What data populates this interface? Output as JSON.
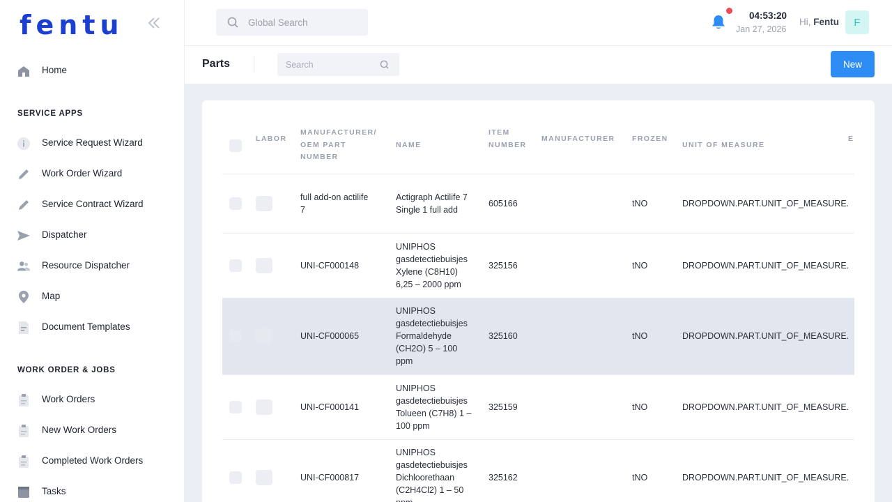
{
  "app": {
    "logo": "fentu"
  },
  "sidebar": {
    "home": {
      "label": "Home",
      "icon": "home-icon"
    },
    "service_apps_title": "SERVICE APPS",
    "service_apps": [
      {
        "label": "Service Request Wizard",
        "icon": "info-icon"
      },
      {
        "label": "Work Order Wizard",
        "icon": "pencil-icon"
      },
      {
        "label": "Service Contract Wizard",
        "icon": "pencil-icon"
      },
      {
        "label": "Dispatcher",
        "icon": "send-icon"
      },
      {
        "label": "Resource Dispatcher",
        "icon": "users-icon"
      },
      {
        "label": "Map",
        "icon": "map-pin-icon"
      },
      {
        "label": "Document Templates",
        "icon": "document-icon"
      }
    ],
    "work_order_title": "WORK ORDER & JOBS",
    "work_order_items": [
      {
        "label": "Work Orders",
        "icon": "clipboard-icon"
      },
      {
        "label": "New Work Orders",
        "icon": "clipboard-icon"
      },
      {
        "label": "Completed Work Orders",
        "icon": "clipboard-icon"
      },
      {
        "label": "Tasks",
        "icon": "tasks-icon"
      }
    ]
  },
  "topbar": {
    "search_placeholder": "Global Search",
    "time": "04:53:20",
    "date": "Jan 27, 2026",
    "greeting_prefix": "Hi,",
    "user_name": "Fentu",
    "avatar_letter": "F"
  },
  "page": {
    "title": "Parts",
    "search_placeholder": "Search",
    "new_label": "New"
  },
  "table": {
    "columns": {
      "labor": "LABOR",
      "mfr_part_line1": "MANUFACTURER/",
      "mfr_part_line2": "OEM PART",
      "mfr_part_line3": "NUMBER",
      "name": "NAME",
      "item_line1": "ITEM",
      "item_line2": "NUMBER",
      "manufacturer": "MANUFACTURER",
      "frozen": "FROZEN",
      "uom": "UNIT OF MEASURE",
      "extra": "E"
    },
    "rows": [
      {
        "mfr_lines": [
          "full add-on actilife",
          "7"
        ],
        "name_lines": [
          "Actigraph Actilife 7",
          "Single 1 full add"
        ],
        "item": "605166",
        "frozen": "tNO",
        "uom": "DROPDOWN.PART.UNIT_OF_MEASURE."
      },
      {
        "mfr_lines": [
          "UNI-CF000148"
        ],
        "name_lines": [
          "UNIPHOS",
          "gasdetectiebuisjes",
          "Xylene (C8H10)",
          "6,25 – 2000 ppm"
        ],
        "item": "325156",
        "frozen": "tNO",
        "uom": "DROPDOWN.PART.UNIT_OF_MEASURE."
      },
      {
        "mfr_lines": [
          "UNI-CF000065"
        ],
        "name_lines": [
          "UNIPHOS",
          "gasdetectiebuisjes",
          "Formaldehyde",
          "(CH2O) 5 – 100",
          "ppm"
        ],
        "item": "325160",
        "frozen": "tNO",
        "uom": "DROPDOWN.PART.UNIT_OF_MEASURE."
      },
      {
        "mfr_lines": [
          "UNI-CF000141"
        ],
        "name_lines": [
          "UNIPHOS",
          "gasdetectiebuisjes",
          "Tolueen (C7H8) 1 –",
          "100 ppm"
        ],
        "item": "325159",
        "frozen": "tNO",
        "uom": "DROPDOWN.PART.UNIT_OF_MEASURE."
      },
      {
        "mfr_lines": [
          "UNI-CF000817"
        ],
        "name_lines": [
          "UNIPHOS",
          "gasdetectiebuisjes",
          "Dichloorethaan",
          "(C2H4Cl2) 1 – 50",
          "ppm"
        ],
        "item": "325162",
        "frozen": "tNO",
        "uom": "DROPDOWN.PART.UNIT_OF_MEASURE."
      }
    ]
  },
  "colors": {
    "brand": "#1b3fd0",
    "accent": "#2e8cf5",
    "notification": "#ef4b57",
    "selected_row": "#e2e6ef"
  }
}
